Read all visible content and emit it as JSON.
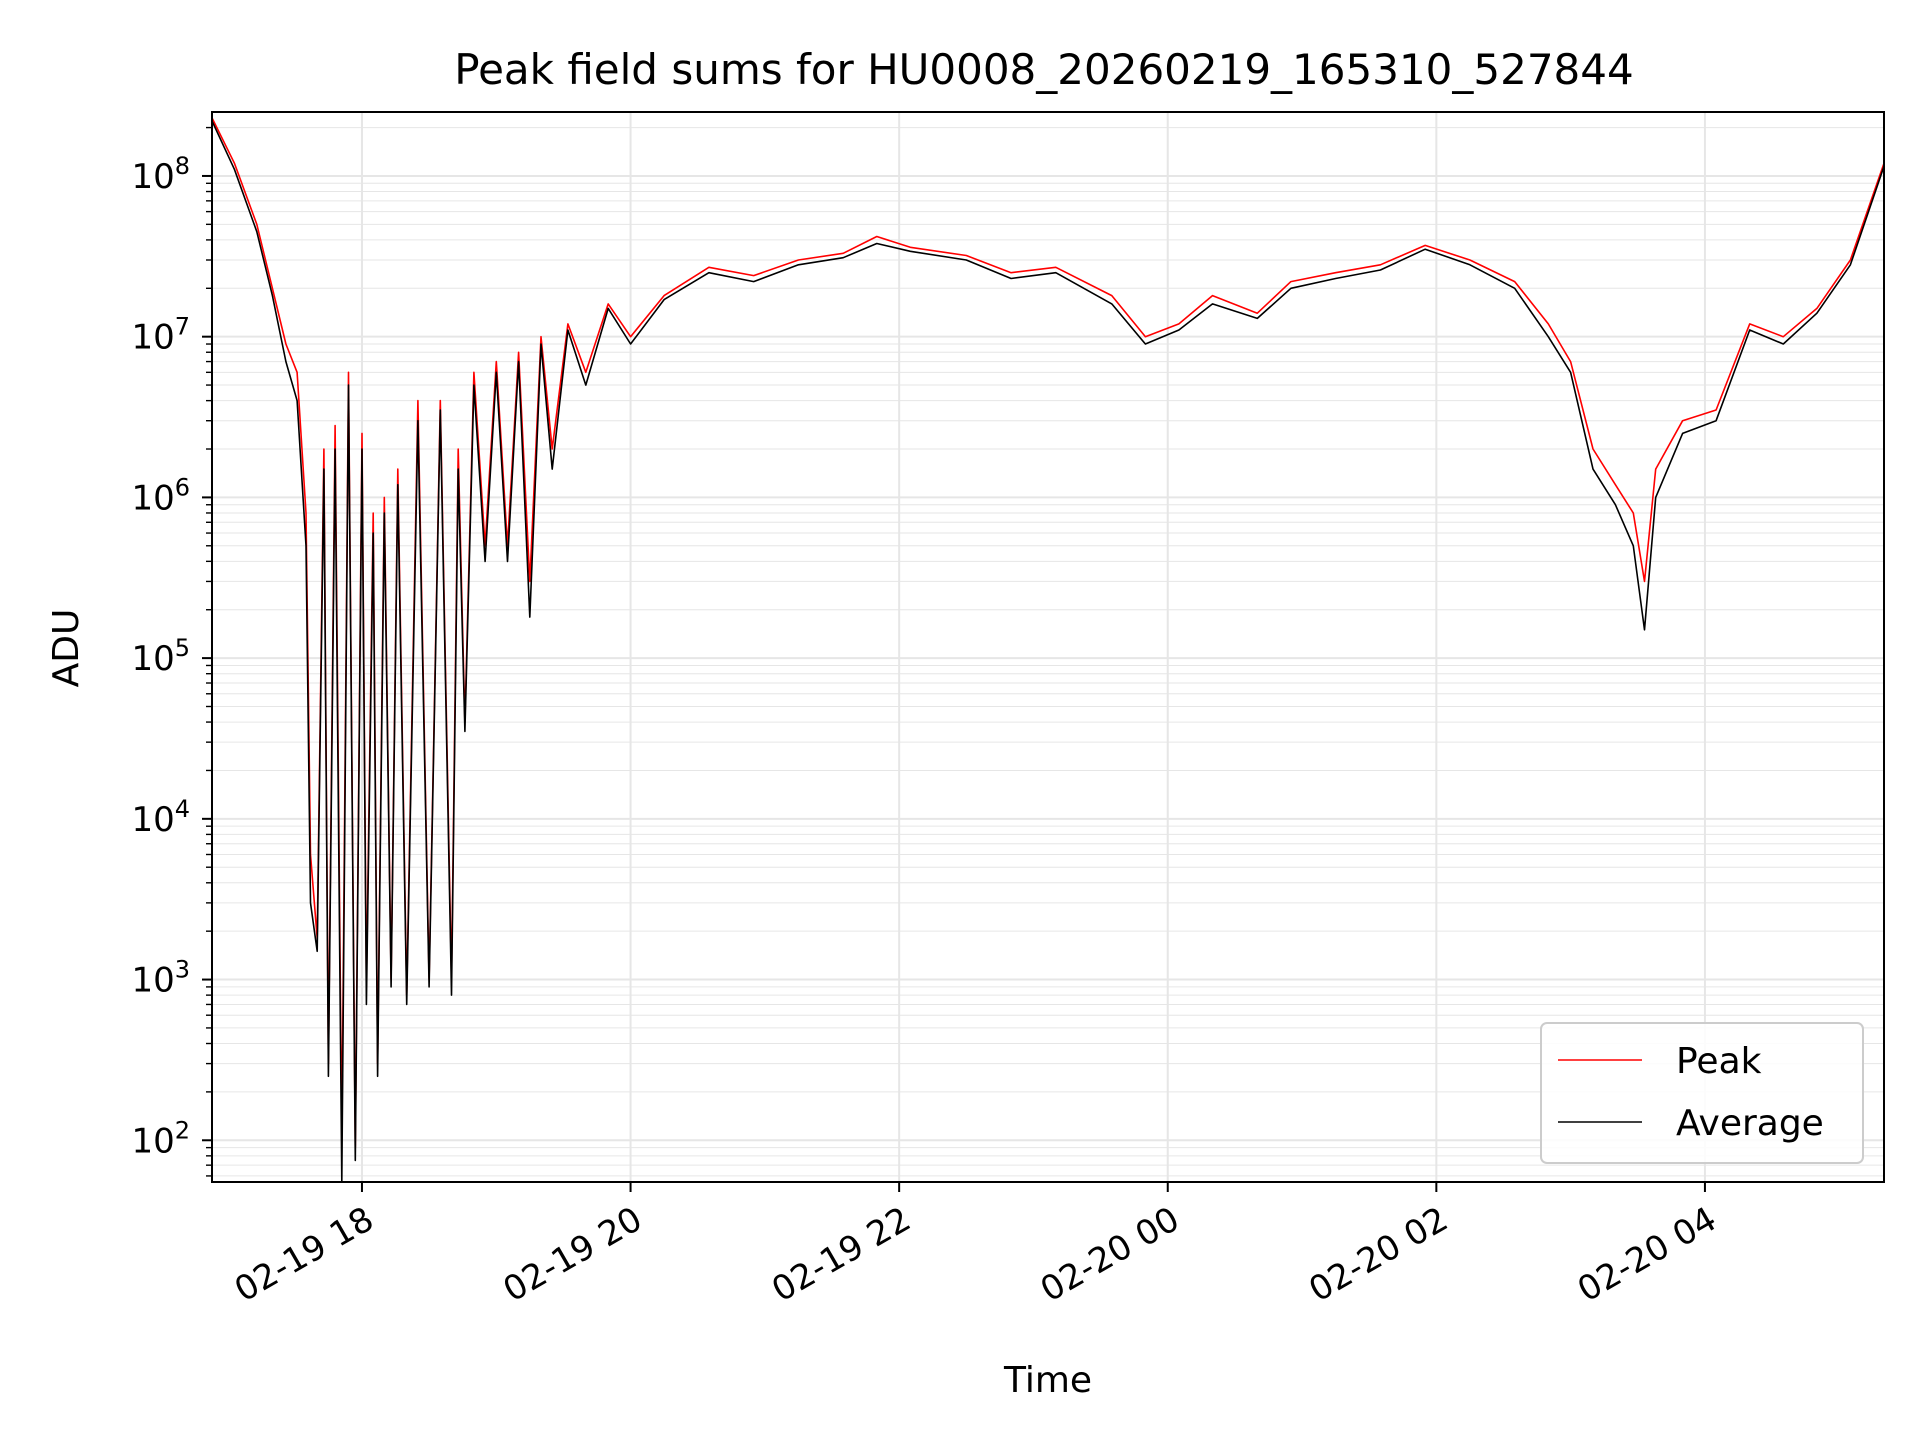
{
  "chart_data": {
    "type": "line",
    "title": "Peak field sums for HU0008_20260219_165310_527844",
    "xlabel": "Time",
    "ylabel": "ADU",
    "yscale": "log",
    "xlim": [
      "2026-02-19 16:53",
      "2026-02-20 05:20"
    ],
    "ylim": [
      55,
      250000000
    ],
    "grid": true,
    "legend_position": "lower-right",
    "x_ticks": [
      {
        "time": "2026-02-19 18:00",
        "label": "02-19 18"
      },
      {
        "time": "2026-02-19 20:00",
        "label": "02-19 20"
      },
      {
        "time": "2026-02-19 22:00",
        "label": "02-19 22"
      },
      {
        "time": "2026-02-20 00:00",
        "label": "02-20 00"
      },
      {
        "time": "2026-02-20 02:00",
        "label": "02-20 02"
      },
      {
        "time": "2026-02-20 04:00",
        "label": "02-20 04"
      }
    ],
    "y_ticks": [
      {
        "value": 100,
        "base": "10",
        "exp": "2"
      },
      {
        "value": 1000,
        "base": "10",
        "exp": "3"
      },
      {
        "value": 10000,
        "base": "10",
        "exp": "4"
      },
      {
        "value": 100000,
        "base": "10",
        "exp": "5"
      },
      {
        "value": 1000000,
        "base": "10",
        "exp": "6"
      },
      {
        "value": 10000000,
        "base": "10",
        "exp": "7"
      },
      {
        "value": 100000000,
        "base": "10",
        "exp": "8"
      }
    ],
    "series": [
      {
        "name": "Peak",
        "color": "#ff0000",
        "points": [
          [
            "2026-02-19 16:53",
            230000000
          ],
          [
            "2026-02-19 17:03",
            120000000
          ],
          [
            "2026-02-19 17:13",
            50000000
          ],
          [
            "2026-02-19 17:20",
            20000000
          ],
          [
            "2026-02-19 17:26",
            9000000
          ],
          [
            "2026-02-19 17:31",
            6000000
          ],
          [
            "2026-02-19 17:35",
            800000
          ],
          [
            "2026-02-19 17:37",
            6000
          ],
          [
            "2026-02-19 17:40",
            1800
          ],
          [
            "2026-02-19 17:43",
            2000000
          ],
          [
            "2026-02-19 17:45",
            300
          ],
          [
            "2026-02-19 17:48",
            2800000
          ],
          [
            "2026-02-19 17:51",
            100
          ],
          [
            "2026-02-19 17:54",
            6000000
          ],
          [
            "2026-02-19 17:57",
            90
          ],
          [
            "2026-02-19 18:00",
            2500000
          ],
          [
            "2026-02-19 18:02",
            900
          ],
          [
            "2026-02-19 18:05",
            800000
          ],
          [
            "2026-02-19 18:07",
            300
          ],
          [
            "2026-02-19 18:10",
            1000000
          ],
          [
            "2026-02-19 18:13",
            1000
          ],
          [
            "2026-02-19 18:16",
            1500000
          ],
          [
            "2026-02-19 18:20",
            800
          ],
          [
            "2026-02-19 18:25",
            4000000
          ],
          [
            "2026-02-19 18:30",
            1000
          ],
          [
            "2026-02-19 18:35",
            4000000
          ],
          [
            "2026-02-19 18:40",
            1000
          ],
          [
            "2026-02-19 18:43",
            2000000
          ],
          [
            "2026-02-19 18:46",
            40000
          ],
          [
            "2026-02-19 18:50",
            6000000
          ],
          [
            "2026-02-19 18:55",
            500000
          ],
          [
            "2026-02-19 19:00",
            7000000
          ],
          [
            "2026-02-19 19:05",
            500000
          ],
          [
            "2026-02-19 19:10",
            8000000
          ],
          [
            "2026-02-19 19:15",
            300000
          ],
          [
            "2026-02-19 19:20",
            10000000
          ],
          [
            "2026-02-19 19:25",
            2000000
          ],
          [
            "2026-02-19 19:32",
            12000000
          ],
          [
            "2026-02-19 19:40",
            6000000
          ],
          [
            "2026-02-19 19:50",
            16000000
          ],
          [
            "2026-02-19 20:00",
            10000000
          ],
          [
            "2026-02-19 20:15",
            18000000
          ],
          [
            "2026-02-19 20:35",
            27000000
          ],
          [
            "2026-02-19 20:55",
            24000000
          ],
          [
            "2026-02-19 21:15",
            30000000
          ],
          [
            "2026-02-19 21:35",
            33000000
          ],
          [
            "2026-02-19 21:50",
            42000000
          ],
          [
            "2026-02-19 22:05",
            36000000
          ],
          [
            "2026-02-19 22:30",
            32000000
          ],
          [
            "2026-02-19 22:50",
            25000000
          ],
          [
            "2026-02-19 23:10",
            27000000
          ],
          [
            "2026-02-19 23:35",
            18000000
          ],
          [
            "2026-02-19 23:50",
            10000000
          ],
          [
            "2026-02-20 00:05",
            12000000
          ],
          [
            "2026-02-20 00:20",
            18000000
          ],
          [
            "2026-02-20 00:40",
            14000000
          ],
          [
            "2026-02-20 00:55",
            22000000
          ],
          [
            "2026-02-20 01:15",
            25000000
          ],
          [
            "2026-02-20 01:35",
            28000000
          ],
          [
            "2026-02-20 01:55",
            37000000
          ],
          [
            "2026-02-20 02:15",
            30000000
          ],
          [
            "2026-02-20 02:35",
            22000000
          ],
          [
            "2026-02-20 02:50",
            12000000
          ],
          [
            "2026-02-20 03:00",
            7000000
          ],
          [
            "2026-02-20 03:10",
            2000000
          ],
          [
            "2026-02-20 03:20",
            1200000
          ],
          [
            "2026-02-20 03:28",
            800000
          ],
          [
            "2026-02-20 03:33",
            300000
          ],
          [
            "2026-02-20 03:38",
            1500000
          ],
          [
            "2026-02-20 03:50",
            3000000
          ],
          [
            "2026-02-20 04:05",
            3500000
          ],
          [
            "2026-02-20 04:20",
            12000000
          ],
          [
            "2026-02-20 04:35",
            10000000
          ],
          [
            "2026-02-20 04:50",
            15000000
          ],
          [
            "2026-02-20 05:05",
            30000000
          ],
          [
            "2026-02-20 05:20",
            120000000
          ]
        ]
      },
      {
        "name": "Average",
        "color": "#000000",
        "points": [
          [
            "2026-02-19 16:53",
            220000000
          ],
          [
            "2026-02-19 17:03",
            110000000
          ],
          [
            "2026-02-19 17:13",
            45000000
          ],
          [
            "2026-02-19 17:20",
            18000000
          ],
          [
            "2026-02-19 17:26",
            7000000
          ],
          [
            "2026-02-19 17:31",
            4000000
          ],
          [
            "2026-02-19 17:35",
            500000
          ],
          [
            "2026-02-19 17:37",
            3000
          ],
          [
            "2026-02-19 17:40",
            1500
          ],
          [
            "2026-02-19 17:43",
            1500000
          ],
          [
            "2026-02-19 17:45",
            250
          ],
          [
            "2026-02-19 17:48",
            2000000
          ],
          [
            "2026-02-19 17:51",
            55
          ],
          [
            "2026-02-19 17:54",
            5000000
          ],
          [
            "2026-02-19 17:57",
            75
          ],
          [
            "2026-02-19 18:00",
            2000000
          ],
          [
            "2026-02-19 18:02",
            700
          ],
          [
            "2026-02-19 18:05",
            600000
          ],
          [
            "2026-02-19 18:07",
            250
          ],
          [
            "2026-02-19 18:10",
            800000
          ],
          [
            "2026-02-19 18:13",
            900
          ],
          [
            "2026-02-19 18:16",
            1200000
          ],
          [
            "2026-02-19 18:20",
            700
          ],
          [
            "2026-02-19 18:25",
            3000000
          ],
          [
            "2026-02-19 18:30",
            900
          ],
          [
            "2026-02-19 18:35",
            3500000
          ],
          [
            "2026-02-19 18:40",
            800
          ],
          [
            "2026-02-19 18:43",
            1500000
          ],
          [
            "2026-02-19 18:46",
            35000
          ],
          [
            "2026-02-19 18:50",
            5000000
          ],
          [
            "2026-02-19 18:55",
            400000
          ],
          [
            "2026-02-19 19:00",
            6000000
          ],
          [
            "2026-02-19 19:05",
            400000
          ],
          [
            "2026-02-19 19:10",
            7000000
          ],
          [
            "2026-02-19 19:15",
            180000
          ],
          [
            "2026-02-19 19:20",
            9000000
          ],
          [
            "2026-02-19 19:25",
            1500000
          ],
          [
            "2026-02-19 19:32",
            11000000
          ],
          [
            "2026-02-19 19:40",
            5000000
          ],
          [
            "2026-02-19 19:50",
            15000000
          ],
          [
            "2026-02-19 20:00",
            9000000
          ],
          [
            "2026-02-19 20:15",
            17000000
          ],
          [
            "2026-02-19 20:35",
            25000000
          ],
          [
            "2026-02-19 20:55",
            22000000
          ],
          [
            "2026-02-19 21:15",
            28000000
          ],
          [
            "2026-02-19 21:35",
            31000000
          ],
          [
            "2026-02-19 21:50",
            38000000
          ],
          [
            "2026-02-19 22:05",
            34000000
          ],
          [
            "2026-02-19 22:30",
            30000000
          ],
          [
            "2026-02-19 22:50",
            23000000
          ],
          [
            "2026-02-19 23:10",
            25000000
          ],
          [
            "2026-02-19 23:35",
            16000000
          ],
          [
            "2026-02-19 23:50",
            9000000
          ],
          [
            "2026-02-20 00:05",
            11000000
          ],
          [
            "2026-02-20 00:20",
            16000000
          ],
          [
            "2026-02-20 00:40",
            13000000
          ],
          [
            "2026-02-20 00:55",
            20000000
          ],
          [
            "2026-02-20 01:15",
            23000000
          ],
          [
            "2026-02-20 01:35",
            26000000
          ],
          [
            "2026-02-20 01:55",
            35000000
          ],
          [
            "2026-02-20 02:15",
            28000000
          ],
          [
            "2026-02-20 02:35",
            20000000
          ],
          [
            "2026-02-20 02:50",
            10000000
          ],
          [
            "2026-02-20 03:00",
            6000000
          ],
          [
            "2026-02-20 03:10",
            1500000
          ],
          [
            "2026-02-20 03:20",
            900000
          ],
          [
            "2026-02-20 03:28",
            500000
          ],
          [
            "2026-02-20 03:33",
            150000
          ],
          [
            "2026-02-20 03:38",
            1000000
          ],
          [
            "2026-02-20 03:50",
            2500000
          ],
          [
            "2026-02-20 04:05",
            3000000
          ],
          [
            "2026-02-20 04:20",
            11000000
          ],
          [
            "2026-02-20 04:35",
            9000000
          ],
          [
            "2026-02-20 04:50",
            14000000
          ],
          [
            "2026-02-20 05:05",
            28000000
          ],
          [
            "2026-02-20 05:20",
            115000000
          ]
        ]
      }
    ],
    "legend": [
      {
        "label": "Peak",
        "color": "#ff0000"
      },
      {
        "label": "Average",
        "color": "#000000"
      }
    ]
  }
}
